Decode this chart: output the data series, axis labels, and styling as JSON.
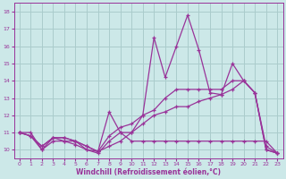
{
  "xlabel": "Windchill (Refroidissement éolien,°C)",
  "xlim": [
    -0.5,
    23.5
  ],
  "ylim": [
    9.5,
    18.5
  ],
  "xticks": [
    0,
    1,
    2,
    3,
    4,
    5,
    6,
    7,
    8,
    9,
    10,
    11,
    12,
    13,
    14,
    15,
    16,
    17,
    18,
    19,
    20,
    21,
    22,
    23
  ],
  "yticks": [
    10,
    11,
    12,
    13,
    14,
    15,
    16,
    17,
    18
  ],
  "bg_color": "#cce8e8",
  "line_color": "#993399",
  "grid_color": "#aacccc",
  "series": [
    [
      11.0,
      11.0,
      10.0,
      10.5,
      10.5,
      10.5,
      10.0,
      9.8,
      10.5,
      11.0,
      10.5,
      10.5,
      10.5,
      10.5,
      10.5,
      10.5,
      10.5,
      10.5,
      10.5,
      10.5,
      10.5,
      10.5,
      10.5,
      9.8
    ],
    [
      11.0,
      10.8,
      10.2,
      10.7,
      10.7,
      10.5,
      10.2,
      9.9,
      10.2,
      10.5,
      11.0,
      11.5,
      12.0,
      12.2,
      12.5,
      12.5,
      12.8,
      13.0,
      13.2,
      13.5,
      14.0,
      13.3,
      10.0,
      9.8
    ],
    [
      11.0,
      10.8,
      10.2,
      10.7,
      10.7,
      10.5,
      10.2,
      9.9,
      10.8,
      11.3,
      11.5,
      12.0,
      12.3,
      13.0,
      13.5,
      13.5,
      13.5,
      13.5,
      13.5,
      14.0,
      14.0,
      13.3,
      10.2,
      9.8
    ],
    [
      11.0,
      10.8,
      10.0,
      10.7,
      10.5,
      10.3,
      10.0,
      9.9,
      12.2,
      11.0,
      11.0,
      12.0,
      16.5,
      14.2,
      16.0,
      17.8,
      15.8,
      13.3,
      13.2,
      15.0,
      14.0,
      13.3,
      10.0,
      9.8
    ]
  ]
}
